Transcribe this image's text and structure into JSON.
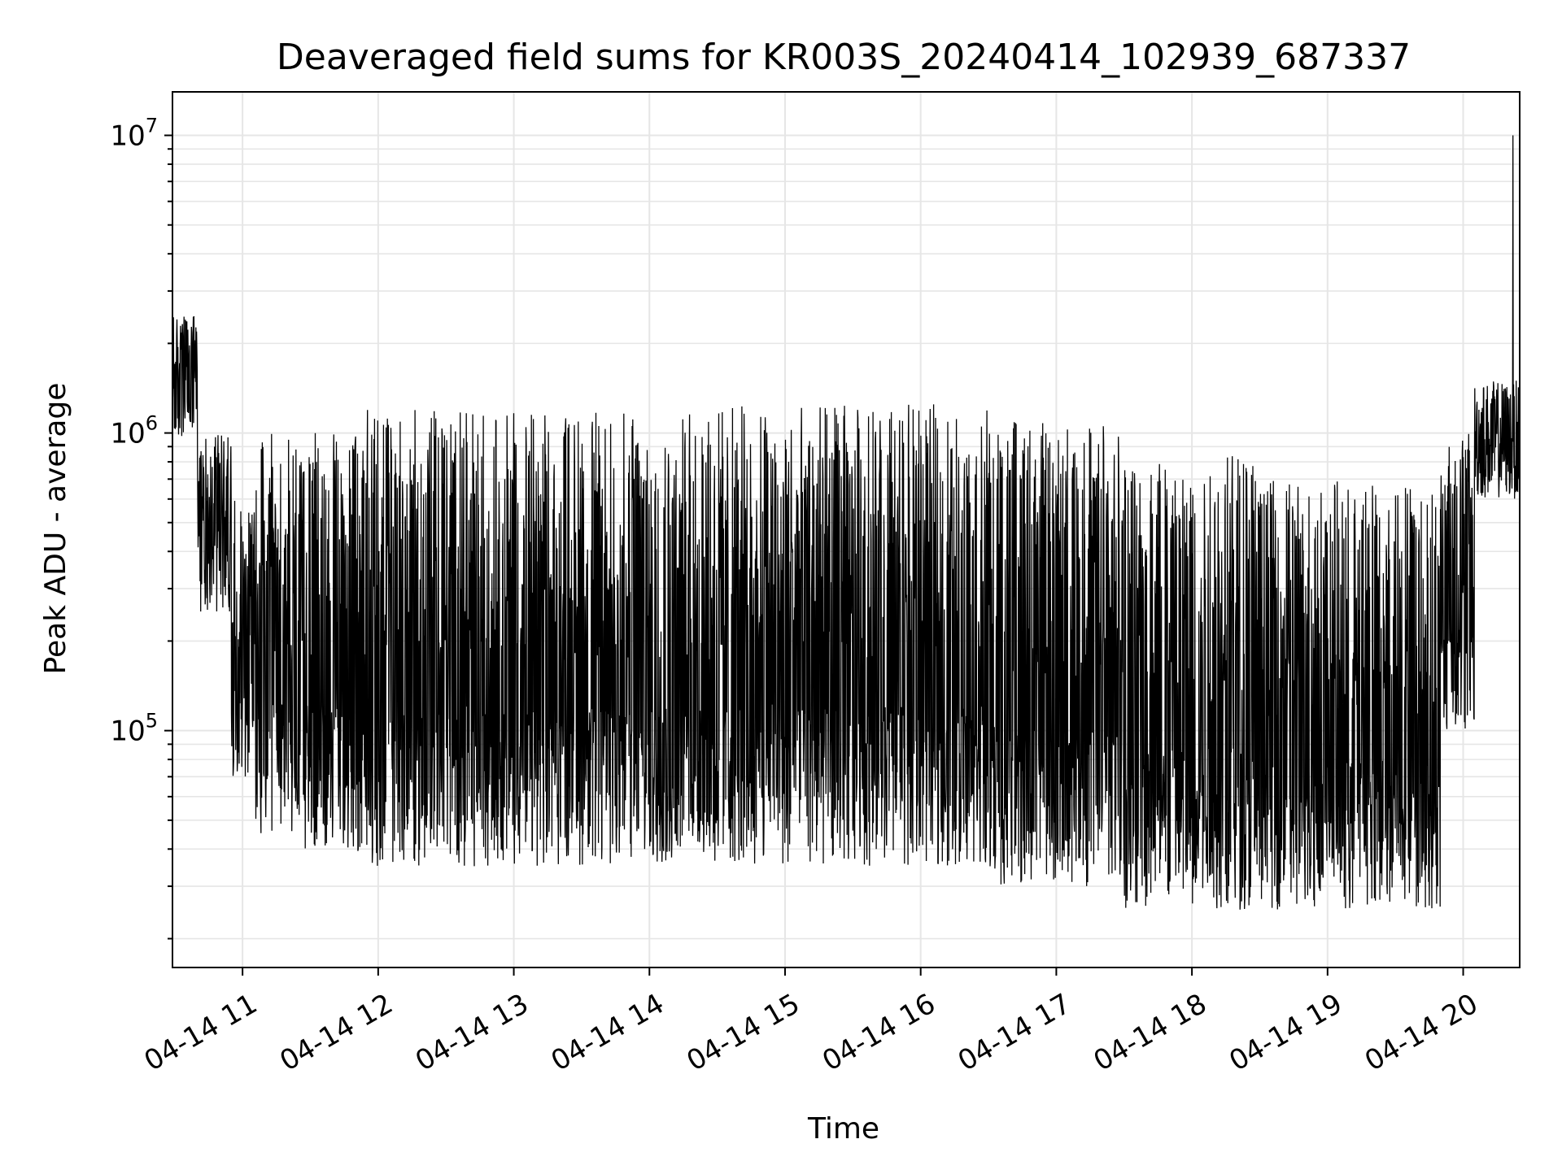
{
  "chart_data": {
    "type": "line",
    "title": "Deaveraged field sums for KR003S_20240414_102939_687337",
    "xlabel": "Time",
    "ylabel": "Peak ADU - average",
    "x_unit": "date-time (UTC hour on 2024-04-14)",
    "xlim": [
      "2024-04-14 10:29",
      "2024-04-14 20:25"
    ],
    "ylim": [
      16000,
      14000000
    ],
    "y_scale": "log",
    "grid": true,
    "line_color": "#000000",
    "x_ticks": [
      {
        "label": "04-14 11",
        "time": "2024-04-14 11:00"
      },
      {
        "label": "04-14 12",
        "time": "2024-04-14 12:00"
      },
      {
        "label": "04-14 13",
        "time": "2024-04-14 13:00"
      },
      {
        "label": "04-14 14",
        "time": "2024-04-14 14:00"
      },
      {
        "label": "04-14 15",
        "time": "2024-04-14 15:00"
      },
      {
        "label": "04-14 16",
        "time": "2024-04-14 16:00"
      },
      {
        "label": "04-14 17",
        "time": "2024-04-14 17:00"
      },
      {
        "label": "04-14 18",
        "time": "2024-04-14 18:00"
      },
      {
        "label": "04-14 19",
        "time": "2024-04-14 19:00"
      },
      {
        "label": "04-14 20",
        "time": "2024-04-14 20:00"
      }
    ],
    "y_ticks": [
      {
        "base": "10",
        "exp": "5",
        "value": 100000
      },
      {
        "base": "10",
        "exp": "6",
        "value": 1000000
      },
      {
        "base": "10",
        "exp": "7",
        "value": 10000000
      }
    ],
    "series": [
      {
        "description": "dense spiky time series, envelope by segment",
        "envelope": [
          {
            "t_start": "2024-04-14 10:29",
            "t_end": "2024-04-14 10:40",
            "low": 900000,
            "high": 2500000
          },
          {
            "t_start": "2024-04-14 10:40",
            "t_end": "2024-04-14 10:55",
            "low": 250000,
            "high": 1000000
          },
          {
            "t_start": "2024-04-14 10:55",
            "t_end": "2024-04-14 11:05",
            "low": 70000,
            "high": 600000
          },
          {
            "t_start": "2024-04-14 11:05",
            "t_end": "2024-04-14 11:50",
            "low": 40000,
            "high": 1000000
          },
          {
            "t_start": "2024-04-14 11:50",
            "t_end": "2024-04-14 12:50",
            "low": 35000,
            "high": 1200000
          },
          {
            "t_start": "2024-04-14 12:50",
            "t_end": "2024-04-14 14:30",
            "low": 35000,
            "high": 1180000
          },
          {
            "t_start": "2024-04-14 14:30",
            "t_end": "2024-04-14 16:30",
            "low": 35000,
            "high": 1250000
          },
          {
            "t_start": "2024-04-14 16:30",
            "t_end": "2024-04-14 17:30",
            "low": 30000,
            "high": 1100000
          },
          {
            "t_start": "2024-04-14 17:30",
            "t_end": "2024-04-14 18:30",
            "low": 25000,
            "high": 900000
          },
          {
            "t_start": "2024-04-14 18:30",
            "t_end": "2024-04-14 19:50",
            "low": 25000,
            "high": 700000
          },
          {
            "t_start": "2024-04-14 19:50",
            "t_end": "2024-04-14 20:05",
            "low": 100000,
            "high": 1000000
          },
          {
            "t_start": "2024-04-14 20:05",
            "t_end": "2024-04-14 20:25",
            "low": 600000,
            "high": 1500000
          }
        ],
        "max_spike": {
          "time": "2024-04-14 20:22",
          "value": 10000000
        }
      }
    ]
  }
}
